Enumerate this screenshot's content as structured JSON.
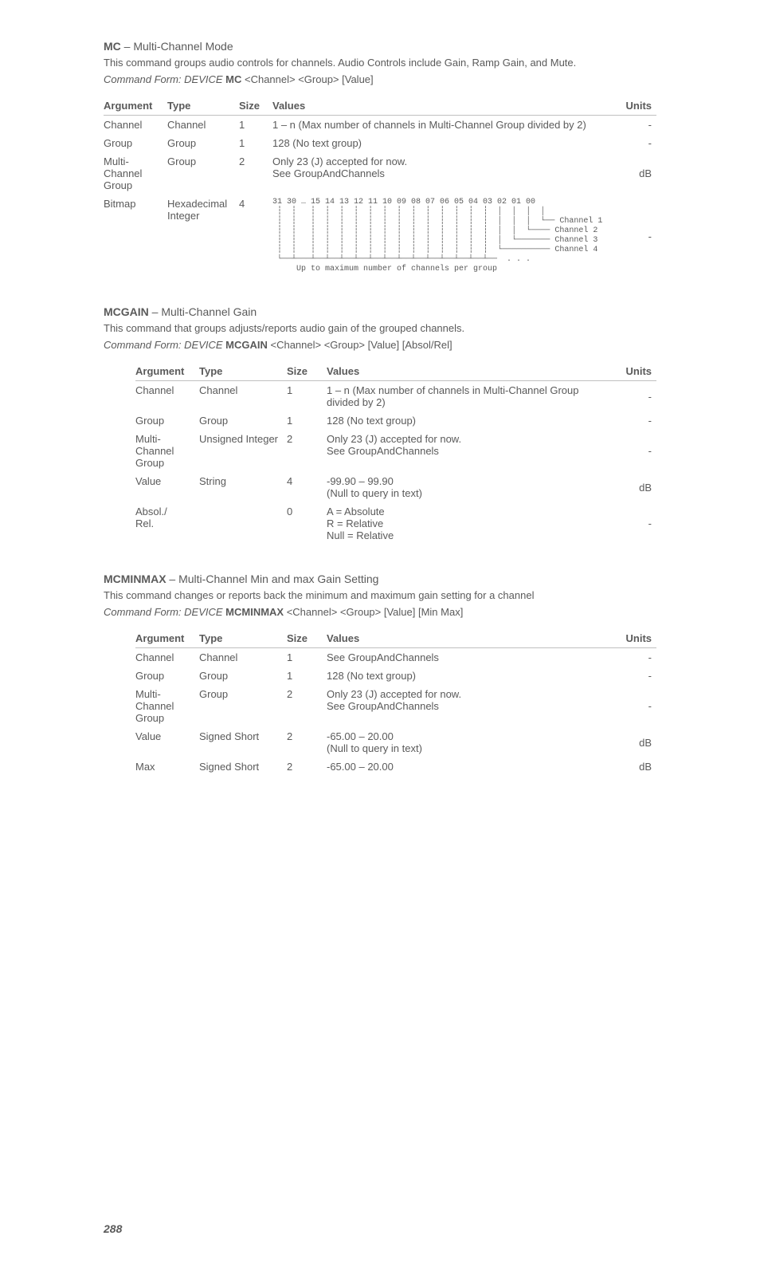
{
  "sections": [
    {
      "name": "MC",
      "title": " – Multi-Channel Mode",
      "desc": "This command groups audio controls for channels.  Audio Controls include Gain, Ramp Gain, and Mute.",
      "form_prefix": "Command Form:  DEVICE ",
      "form_cmd": "MC",
      "form_args": " <Channel> <Group> [Value]",
      "headers": [
        "Argument",
        "Type",
        "Size",
        "Values",
        "Units"
      ],
      "rows": [
        {
          "arg": "Channel",
          "type": "Channel",
          "size": "1",
          "values": "1 – n (Max number of channels in Multi-Channel Group divided by 2)",
          "units": "-"
        },
        {
          "arg": "Group",
          "type": "Group",
          "size": "1",
          "values": "128 (No text group)",
          "units": "-"
        },
        {
          "arg": "Multi-Channel Group",
          "type": "Group",
          "size": "2",
          "values": "Only 23 (J) accepted for now.\nSee GroupAndChannels",
          "units": "dB"
        },
        {
          "arg": "Bitmap",
          "type": "Hexadecimal Integer",
          "size": "4",
          "values": "",
          "units": "-",
          "diagram": true
        }
      ],
      "bitmap_diagram": "31 30 … 15 14 13 12 11 10 09 08 07 06 05 04 03 02 01 00\n ┆  ┆   ┆  ┆  ┆  ┆  ┆  ┆  ┆  ┆  ┆  ┆  ┆  ┆  ┆  │  │  │  │\n ┆  ┆   ┆  ┆  ┆  ┆  ┆  ┆  ┆  ┆  ┆  ┆  ┆  ┆  ┆  │  │  │  └── Channel 1\n ┆  ┆   ┆  ┆  ┆  ┆  ┆  ┆  ┆  ┆  ┆  ┆  ┆  ┆  ┆  │  │  └──── Channel 2\n ┆  ┆   ┆  ┆  ┆  ┆  ┆  ┆  ┆  ┆  ┆  ┆  ┆  ┆  ┆  │  └─────── Channel 3\n ┆  ┆   ┆  ┆  ┆  ┆  ┆  ┆  ┆  ┆  ┆  ┆  ┆  ┆  ┆  └────────── Channel 4\n └──┴───┴──┴──┴──┴──┴──┴──┴──┴──┴──┴──┴──┴──┴──  . . .\n     Up to maximum number of channels per group"
    },
    {
      "name": "MCGAIN",
      "title": " – Multi-Channel Gain",
      "desc": "This command that groups adjusts/reports audio gain of the grouped channels.",
      "form_prefix": "Command Form:  DEVICE ",
      "form_cmd": "MCGAIN",
      "form_args": " <Channel> <Group> [Value] [Absol/Rel]",
      "headers": [
        "Argument",
        "Type",
        "Size",
        "Values",
        "Units"
      ],
      "rows": [
        {
          "arg": "Channel",
          "type": "Channel",
          "size": "1",
          "values": "1 – n (Max number of channels in Multi-Channel Group divided by 2)",
          "units": "-"
        },
        {
          "arg": "Group",
          "type": "Group",
          "size": "1",
          "values": "128 (No text group)",
          "units": "-"
        },
        {
          "arg": "Multi-Channel Group",
          "type": "Unsigned Integer",
          "size": "2",
          "values": "Only 23 (J) accepted for now.\nSee GroupAndChannels",
          "units": "-"
        },
        {
          "arg": "Value",
          "type": "String",
          "size": "4",
          "values": "-99.90 – 99.90\n(Null to query in text)",
          "units": "dB"
        },
        {
          "arg": "Absol./\nRel.",
          "type": "",
          "size": "0",
          "values": "A = Absolute\nR = Relative\nNull = Relative",
          "units": "-"
        }
      ]
    },
    {
      "name": "MCMINMAX",
      "title": " – Multi-Channel Min and max Gain Setting",
      "desc": "This command changes or reports back the minimum and maximum gain setting for a channel",
      "form_prefix": "Command Form:  DEVICE ",
      "form_cmd": "MCMINMAX",
      "form_args": " <Channel> <Group> [Value] [Min Max]",
      "headers": [
        "Argument",
        "Type",
        "Size",
        "Values",
        "Units"
      ],
      "rows": [
        {
          "arg": "Channel",
          "type": "Channel",
          "size": "1",
          "values": "See GroupAndChannels",
          "units": "-"
        },
        {
          "arg": "Group",
          "type": "Group",
          "size": "1",
          "values": "128 (No text group)",
          "units": "-"
        },
        {
          "arg": "Multi-Channel Group",
          "type": "Group",
          "size": "2",
          "values": "Only 23 (J) accepted for now.\nSee GroupAndChannels",
          "units": "-"
        },
        {
          "arg": "Value",
          "type": "Signed Short",
          "size": "2",
          "values": "-65.00 – 20.00\n(Null to query in text)",
          "units": "dB"
        },
        {
          "arg": "Max",
          "type": "Signed Short",
          "size": "2",
          "values": "-65.00 – 20.00",
          "units": "dB"
        }
      ]
    }
  ],
  "page_number": "288",
  "col_widths": {
    "table1": {
      "arg": "80px",
      "type": "90px",
      "size": "42px",
      "values": "auto",
      "units": "50px"
    },
    "table23": {
      "arg": "80px",
      "type": "110px",
      "size": "50px",
      "values": "auto",
      "units": "50px"
    }
  }
}
